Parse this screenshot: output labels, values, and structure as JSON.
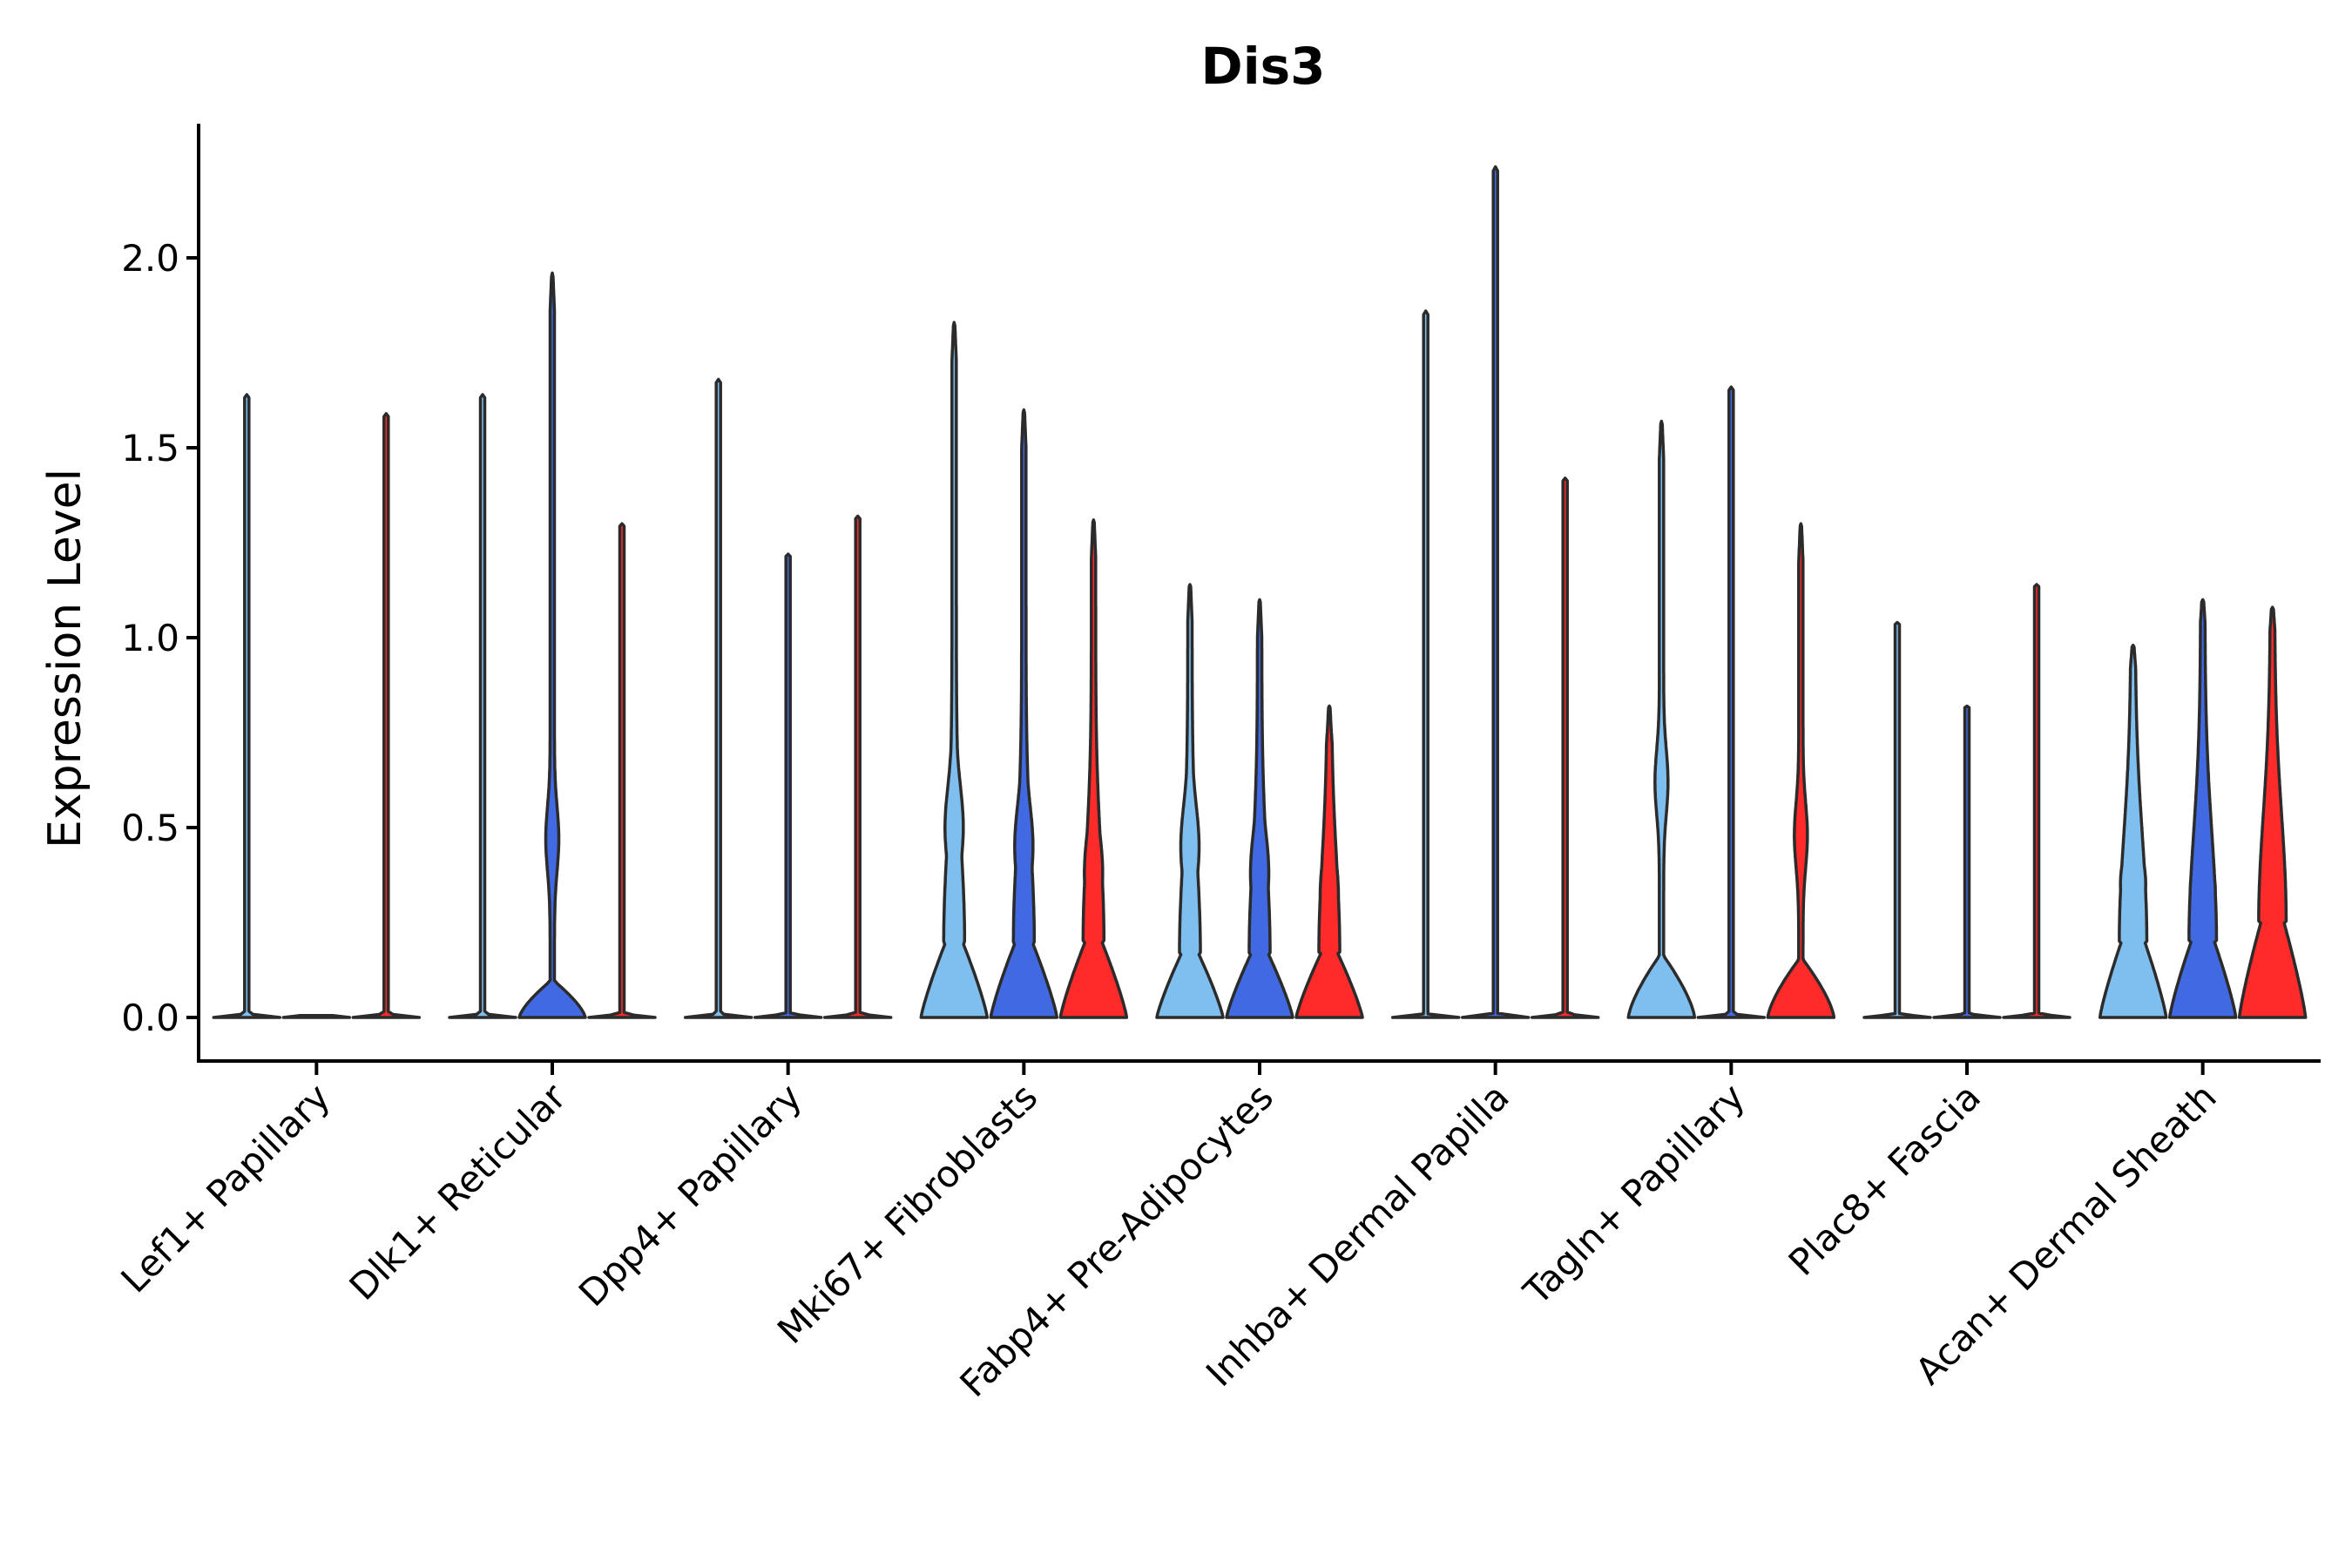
{
  "chart_data": {
    "type": "violin",
    "title": "Dis3",
    "xlabel": "",
    "ylabel": "Expression Level",
    "ylim": [
      -0.11,
      2.36
    ],
    "yticks": [
      0.0,
      0.5,
      1.0,
      1.5,
      2.0
    ],
    "ytick_labels": [
      "0.0",
      "0.5",
      "1.0",
      "1.5",
      "2.0"
    ],
    "grid": false,
    "legend": "none",
    "categories": [
      "Lef1+ Papillary",
      "Dlk1+ Reticular",
      "Dpp4+ Papillary",
      "Mki67+ Fibroblasts",
      "Fabp4+ Pre-Adipocytes",
      "Inhba+ Dermal Papilla",
      "Tagln+ Papillary",
      "Plac8+ Fascia",
      "Acan+ Dermal Sheath"
    ],
    "series_colors": [
      "#7fbfef",
      "#4169e1",
      "#ff2a2a"
    ],
    "violins": [
      {
        "category": 0,
        "series": 0,
        "max": 1.64,
        "shape": "flat"
      },
      {
        "category": 0,
        "series": 1,
        "max": 0.0,
        "shape": "flat"
      },
      {
        "category": 0,
        "series": 2,
        "max": 1.59,
        "shape": "flat"
      },
      {
        "category": 1,
        "series": 0,
        "max": 1.64,
        "shape": "flat"
      },
      {
        "category": 1,
        "series": 1,
        "max": 1.96,
        "shape": "base_bump",
        "base_top": 0.1,
        "bump": 0.47
      },
      {
        "category": 1,
        "series": 2,
        "max": 1.3,
        "shape": "flat"
      },
      {
        "category": 2,
        "series": 0,
        "max": 1.68,
        "shape": "flat"
      },
      {
        "category": 2,
        "series": 1,
        "max": 1.22,
        "shape": "flat"
      },
      {
        "category": 2,
        "series": 2,
        "max": 1.32,
        "shape": "flat"
      },
      {
        "category": 3,
        "series": 0,
        "max": 1.83,
        "shape": "full",
        "base_top": 0.2,
        "bump": 0.5
      },
      {
        "category": 3,
        "series": 1,
        "max": 1.6,
        "shape": "full",
        "base_top": 0.2,
        "bump": 0.45
      },
      {
        "category": 3,
        "series": 2,
        "max": 1.31,
        "shape": "full",
        "base_top": 0.2,
        "bump": 0.38
      },
      {
        "category": 4,
        "series": 0,
        "max": 1.14,
        "shape": "full",
        "base_top": 0.17,
        "bump": 0.45
      },
      {
        "category": 4,
        "series": 1,
        "max": 1.1,
        "shape": "full",
        "base_top": 0.17,
        "bump": 0.38
      },
      {
        "category": 4,
        "series": 2,
        "max": 0.82,
        "shape": "full",
        "base_top": 0.17,
        "bump": 0.32
      },
      {
        "category": 5,
        "series": 0,
        "max": 1.86,
        "shape": "flat"
      },
      {
        "category": 5,
        "series": 1,
        "max": 2.24,
        "shape": "flat"
      },
      {
        "category": 5,
        "series": 2,
        "max": 1.42,
        "shape": "flat"
      },
      {
        "category": 6,
        "series": 0,
        "max": 1.57,
        "shape": "base_bump",
        "base_top": 0.17,
        "bump": 0.62
      },
      {
        "category": 6,
        "series": 1,
        "max": 1.66,
        "shape": "flat"
      },
      {
        "category": 6,
        "series": 2,
        "max": 1.3,
        "shape": "base_bump",
        "base_top": 0.16,
        "bump": 0.48
      },
      {
        "category": 7,
        "series": 0,
        "max": 1.04,
        "shape": "flat"
      },
      {
        "category": 7,
        "series": 1,
        "max": 0.82,
        "shape": "flat"
      },
      {
        "category": 7,
        "series": 2,
        "max": 1.14,
        "shape": "flat"
      },
      {
        "category": 8,
        "series": 0,
        "max": 0.98,
        "shape": "wide",
        "base_top": 0.2,
        "bump": 0.35
      },
      {
        "category": 8,
        "series": 1,
        "max": 1.1,
        "shape": "wide",
        "base_top": 0.2,
        "bump": 0.33
      },
      {
        "category": 8,
        "series": 2,
        "max": 1.08,
        "shape": "wide",
        "base_top": 0.25,
        "bump": 0.3
      }
    ]
  }
}
